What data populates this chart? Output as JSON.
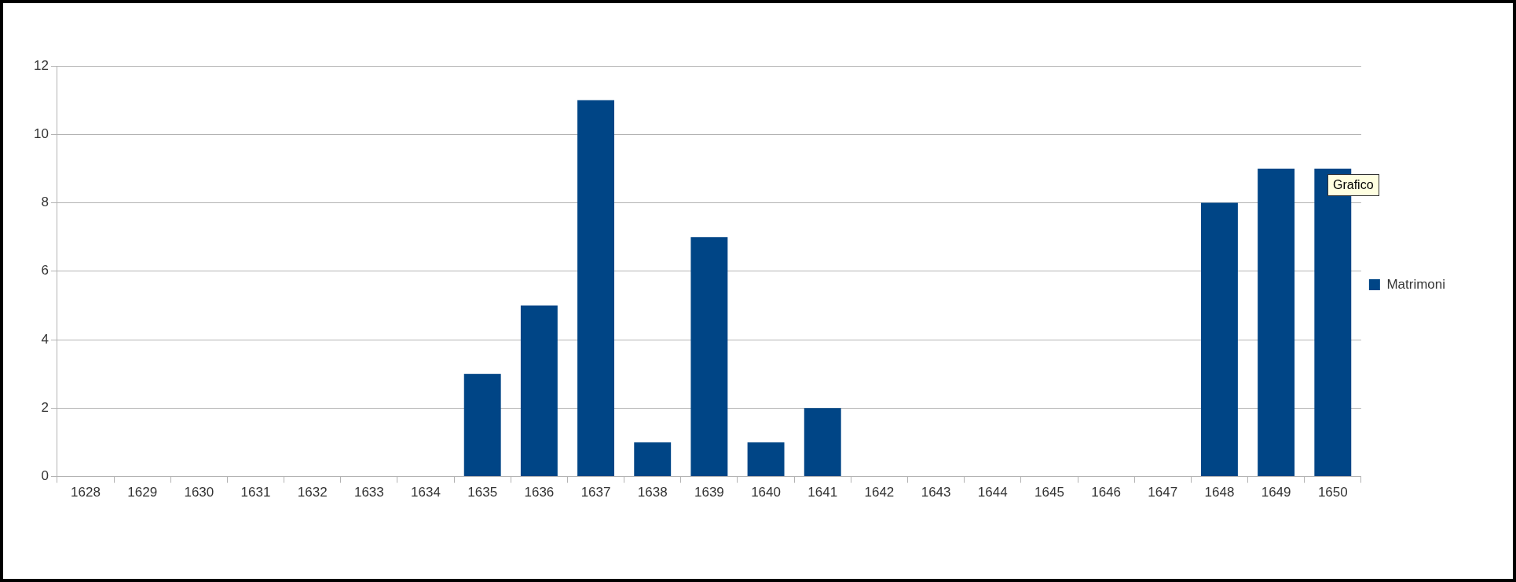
{
  "chart_data": {
    "type": "bar",
    "categories": [
      "1628",
      "1629",
      "1630",
      "1631",
      "1632",
      "1633",
      "1634",
      "1635",
      "1636",
      "1637",
      "1638",
      "1639",
      "1640",
      "1641",
      "1642",
      "1643",
      "1644",
      "1645",
      "1646",
      "1647",
      "1648",
      "1649",
      "1650"
    ],
    "series": [
      {
        "name": "Matrimoni",
        "color": "#004586",
        "values": [
          0,
          0,
          0,
          0,
          0,
          0,
          0,
          3,
          5,
          11,
          1,
          7,
          1,
          2,
          0,
          0,
          0,
          0,
          0,
          0,
          8,
          9,
          9
        ]
      }
    ],
    "ylim": [
      0,
      12
    ],
    "yticks": [
      0,
      2,
      4,
      6,
      8,
      10,
      12
    ],
    "grid": "y",
    "legend": "right",
    "annotations": [
      "Grafico"
    ]
  }
}
